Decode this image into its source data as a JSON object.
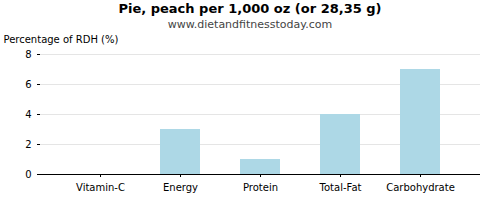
{
  "chart_data": {
    "type": "bar",
    "title": "Pie, peach per 1,000 oz (or 28,35 g)",
    "subtitle": "www.dietandfitnesstoday.com",
    "categories": [
      "Vitamin-C",
      "Energy",
      "Protein",
      "Total-Fat",
      "Carbohydrate"
    ],
    "values": [
      0,
      3,
      1,
      4,
      7
    ],
    "color": "#add8e6",
    "ylabel": "Percentage of RDH (%)",
    "ylim": [
      0,
      8
    ],
    "yticks": [
      0,
      2,
      4,
      6,
      8
    ],
    "grid": true
  }
}
